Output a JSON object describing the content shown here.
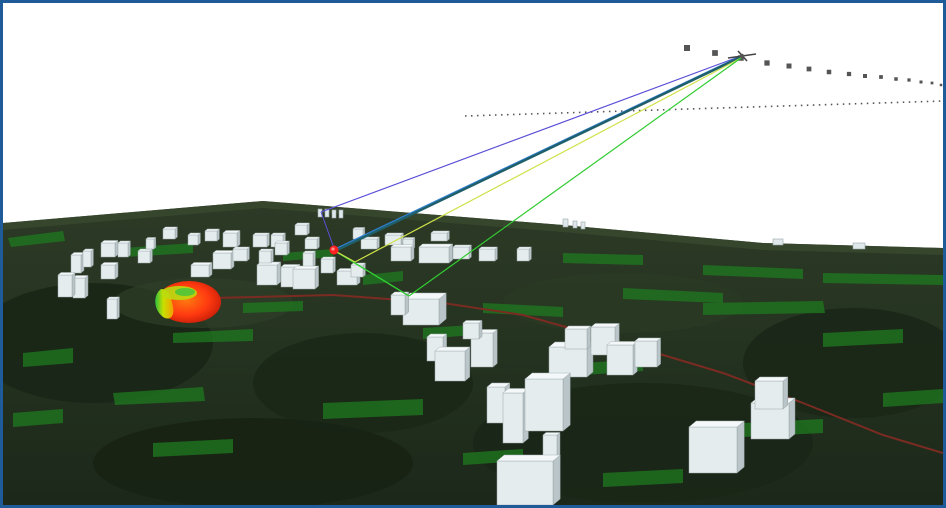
{
  "scene": {
    "kind": "3d-rf-propagation-view",
    "frame_color": "#1f5a99",
    "sky_color": "#ffffff",
    "terrain_color": "#25321f",
    "vegetation_color": "#1f7a1f",
    "building_color": "#e4ecee",
    "road_color": "#7a2b22",
    "antenna_marker_color": "#ff2020",
    "ray_colors": [
      "#5a4fd6",
      "#2f7fd0",
      "#1f5f6a",
      "#cfe24a",
      "#33cc33"
    ],
    "pattern_colors": [
      "#ff3a10",
      "#f2a000",
      "#c8e000",
      "#2fbf3f"
    ],
    "track_color": "#555555",
    "aircraft_icon": "aircraft-icon",
    "antenna_icon": "antenna-marker-icon"
  }
}
